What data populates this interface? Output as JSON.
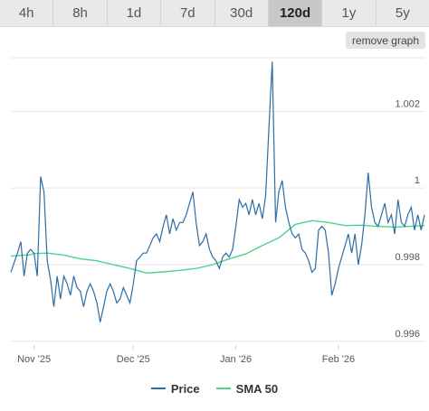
{
  "tabs": [
    {
      "label": "4h",
      "active": false
    },
    {
      "label": "8h",
      "active": false
    },
    {
      "label": "1d",
      "active": false
    },
    {
      "label": "7d",
      "active": false
    },
    {
      "label": "30d",
      "active": false
    },
    {
      "label": "120d",
      "active": true
    },
    {
      "label": "1y",
      "active": false
    },
    {
      "label": "5y",
      "active": false
    }
  ],
  "remove_graph_label": "remove graph",
  "colors": {
    "price": "#2e6da4",
    "sma": "#4cd38a",
    "grid": "#e6e6e6"
  },
  "chart_data": {
    "type": "line",
    "title": "",
    "xlabel": "",
    "ylabel": "",
    "ylim": [
      0.9959,
      1.0034
    ],
    "xlim": [
      "2025-10-25",
      "2026-02-27"
    ],
    "y_ticks": [
      {
        "value": 0.996,
        "label": "0.996"
      },
      {
        "value": 0.998,
        "label": "0.998"
      },
      {
        "value": 1.0,
        "label": "1"
      },
      {
        "value": 1.002,
        "label": "1.002"
      }
    ],
    "x_ticks": [
      {
        "value": "2025-11-01",
        "label": "Nov '25"
      },
      {
        "value": "2025-12-01",
        "label": "Dec '25"
      },
      {
        "value": "2026-01-01",
        "label": "Jan '26"
      },
      {
        "value": "2026-02-01",
        "label": "Feb '26"
      }
    ],
    "grid": true,
    "legend_position": "bottom",
    "series": [
      {
        "name": "Price",
        "x": [
          "2025-10-25",
          "2025-10-27",
          "2025-10-28",
          "2025-10-29",
          "2025-10-30",
          "2025-10-31",
          "2025-11-01",
          "2025-11-02",
          "2025-11-03",
          "2025-11-04",
          "2025-11-05",
          "2025-11-06",
          "2025-11-07",
          "2025-11-08",
          "2025-11-09",
          "2025-11-10",
          "2025-11-11",
          "2025-11-12",
          "2025-11-13",
          "2025-11-14",
          "2025-11-15",
          "2025-11-16",
          "2025-11-17",
          "2025-11-18",
          "2025-11-19",
          "2025-11-20",
          "2025-11-21",
          "2025-11-22",
          "2025-11-23",
          "2025-11-24",
          "2025-11-25",
          "2025-11-26",
          "2025-11-27",
          "2025-11-28",
          "2025-11-29",
          "2025-11-30",
          "2025-12-01",
          "2025-12-02",
          "2025-12-03",
          "2025-12-04",
          "2025-12-05",
          "2025-12-06",
          "2025-12-07",
          "2025-12-08",
          "2025-12-09",
          "2025-12-10",
          "2025-12-11",
          "2025-12-12",
          "2025-12-13",
          "2025-12-14",
          "2025-12-15",
          "2025-12-16",
          "2025-12-17",
          "2025-12-18",
          "2025-12-19",
          "2025-12-20",
          "2025-12-21",
          "2025-12-22",
          "2025-12-23",
          "2025-12-24",
          "2025-12-25",
          "2025-12-26",
          "2025-12-27",
          "2025-12-28",
          "2025-12-29",
          "2025-12-30",
          "2025-12-31",
          "2026-01-01",
          "2026-01-02",
          "2026-01-03",
          "2026-01-04",
          "2026-01-05",
          "2026-01-06",
          "2026-01-07",
          "2026-01-08",
          "2026-01-09",
          "2026-01-10",
          "2026-01-11",
          "2026-01-12",
          "2026-01-13",
          "2026-01-14",
          "2026-01-15",
          "2026-01-16",
          "2026-01-17",
          "2026-01-18",
          "2026-01-19",
          "2026-01-20",
          "2026-01-21",
          "2026-01-22",
          "2026-01-23",
          "2026-01-24",
          "2026-01-25",
          "2026-01-26",
          "2026-01-27",
          "2026-01-28",
          "2026-01-29",
          "2026-01-30",
          "2026-01-31",
          "2026-02-01",
          "2026-02-02",
          "2026-02-03",
          "2026-02-04",
          "2026-02-05",
          "2026-02-06",
          "2026-02-07",
          "2026-02-08",
          "2026-02-09",
          "2026-02-10",
          "2026-02-11",
          "2026-02-12",
          "2026-02-13",
          "2026-02-14",
          "2026-02-15",
          "2026-02-16",
          "2026-02-17",
          "2026-02-18",
          "2026-02-19",
          "2026-02-20",
          "2026-02-21",
          "2026-02-22",
          "2026-02-23",
          "2026-02-24",
          "2026-02-25",
          "2026-02-26",
          "2026-02-27"
        ],
        "y": [
          0.9978,
          0.9983,
          0.9986,
          0.9977,
          0.9983,
          0.9984,
          0.9983,
          0.9977,
          1.0003,
          0.9999,
          0.9981,
          0.9976,
          0.9969,
          0.9977,
          0.9971,
          0.9977,
          0.9975,
          0.9972,
          0.9977,
          0.9974,
          0.9973,
          0.9969,
          0.9973,
          0.9975,
          0.9973,
          0.997,
          0.9965,
          0.9969,
          0.9973,
          0.9975,
          0.9973,
          0.997,
          0.9971,
          0.9974,
          0.9972,
          0.997,
          0.9975,
          0.9981,
          0.9982,
          0.9983,
          0.9983,
          0.9985,
          0.9987,
          0.9988,
          0.9986,
          0.999,
          0.9993,
          0.9988,
          0.9992,
          0.9989,
          0.9991,
          0.9991,
          0.9993,
          0.9996,
          0.9999,
          0.9991,
          0.9985,
          0.9986,
          0.9988,
          0.9984,
          0.9982,
          0.9981,
          0.9979,
          0.9982,
          0.9983,
          0.9982,
          0.9984,
          0.999,
          0.9997,
          0.9995,
          0.9996,
          0.9993,
          0.9997,
          0.9993,
          0.9996,
          0.9992,
          0.9998,
          1.0016,
          1.0033,
          0.9991,
          0.9999,
          1.0002,
          0.9995,
          0.9991,
          0.9988,
          0.9987,
          0.9988,
          0.9984,
          0.9983,
          0.9981,
          0.9978,
          0.9979,
          0.9989,
          0.999,
          0.9989,
          0.9983,
          0.9972,
          0.9975,
          0.9979,
          0.9982,
          0.9985,
          0.9988,
          0.9983,
          0.9988,
          0.998,
          0.9985,
          0.9993,
          1.0004,
          0.9995,
          0.9991,
          0.999,
          0.9993,
          0.9996,
          0.9991,
          0.9993,
          0.9988,
          0.9997,
          0.9991,
          0.999,
          0.9993,
          0.9995,
          0.9989,
          0.9993,
          0.9989,
          0.9993
        ]
      },
      {
        "name": "SMA 50",
        "x": [
          "2025-10-25",
          "2025-10-31",
          "2025-11-01",
          "2025-11-05",
          "2025-11-10",
          "2025-11-15",
          "2025-11-20",
          "2025-11-25",
          "2025-11-30",
          "2025-12-05",
          "2025-12-10",
          "2025-12-15",
          "2025-12-20",
          "2025-12-25",
          "2025-12-30",
          "2026-01-04",
          "2026-01-09",
          "2026-01-14",
          "2026-01-19",
          "2026-01-24",
          "2026-01-29",
          "2026-02-03",
          "2026-02-08",
          "2026-02-13",
          "2026-02-18",
          "2026-02-23",
          "2026-02-27"
        ],
        "y": [
          0.99822,
          0.99826,
          0.99829,
          0.9983,
          0.99825,
          0.99815,
          0.9981,
          0.998,
          0.9979,
          0.99778,
          0.99781,
          0.99785,
          0.9979,
          0.998,
          0.99815,
          0.99828,
          0.9985,
          0.9987,
          0.99905,
          0.99915,
          0.9991,
          0.99902,
          0.99903,
          0.999,
          0.99898,
          0.999,
          0.99902
        ]
      }
    ]
  }
}
